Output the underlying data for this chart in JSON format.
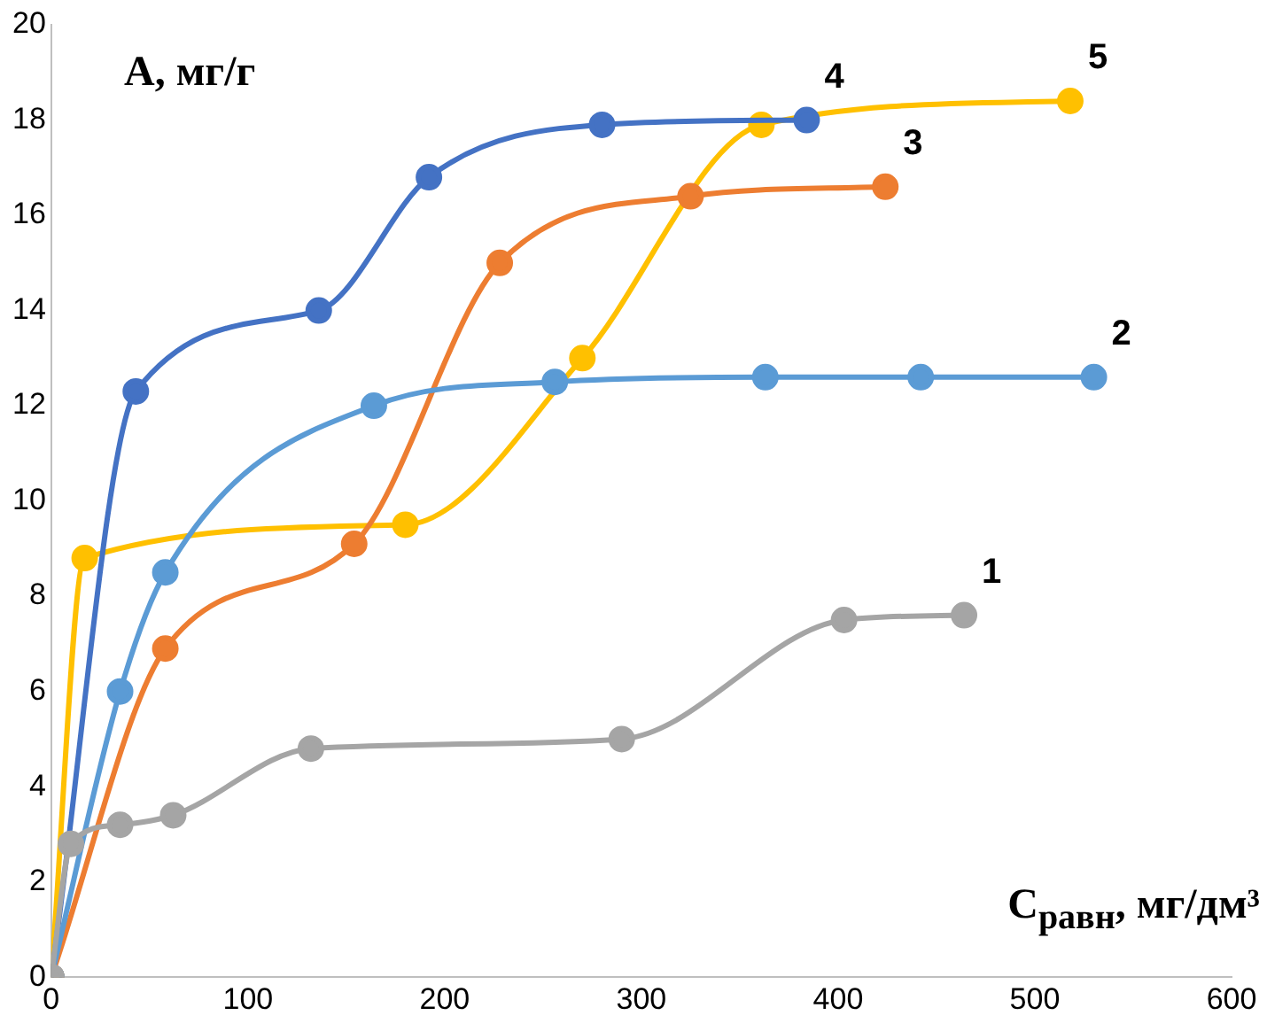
{
  "chart_data": {
    "type": "line",
    "xlabel": "С$_{равн}$, мг/дм³",
    "ylabel": "А, мг/г",
    "xlim": [
      0,
      600
    ],
    "xticks": [
      0,
      100,
      200,
      300,
      400,
      500,
      600
    ],
    "ylim": [
      0,
      20
    ],
    "yticks": [
      0,
      2,
      4,
      6,
      8,
      10,
      12,
      14,
      16,
      18,
      20
    ],
    "grid": false,
    "legend": false,
    "marker": "circle",
    "line_style": "solid",
    "series": [
      {
        "name": "1",
        "color": "#a5a5a5",
        "x": [
          0,
          10,
          35,
          62,
          132,
          290,
          403,
          464
        ],
        "values": [
          0,
          2.8,
          3.2,
          3.4,
          4.8,
          5.0,
          7.5,
          7.6
        ]
      },
      {
        "name": "2",
        "color": "#5b9bd5",
        "x": [
          0,
          35,
          58,
          164,
          256,
          363,
          442,
          530
        ],
        "values": [
          0,
          6.0,
          8.5,
          12.0,
          12.5,
          12.6,
          12.6,
          12.6
        ]
      },
      {
        "name": "3",
        "color": "#ed7d31",
        "x": [
          0,
          58,
          154,
          228,
          325,
          424
        ],
        "values": [
          0,
          6.9,
          9.1,
          15.0,
          16.4,
          16.6
        ]
      },
      {
        "name": "4",
        "color": "#4472c4",
        "x": [
          0,
          43,
          136,
          192,
          280,
          384
        ],
        "values": [
          0,
          12.3,
          14.0,
          16.8,
          17.9,
          18.0
        ]
      },
      {
        "name": "5",
        "color": "#ffc000",
        "x": [
          0,
          17,
          180,
          270,
          361,
          518
        ],
        "values": [
          0,
          8.8,
          9.5,
          13.0,
          17.9,
          18.4
        ]
      }
    ]
  }
}
